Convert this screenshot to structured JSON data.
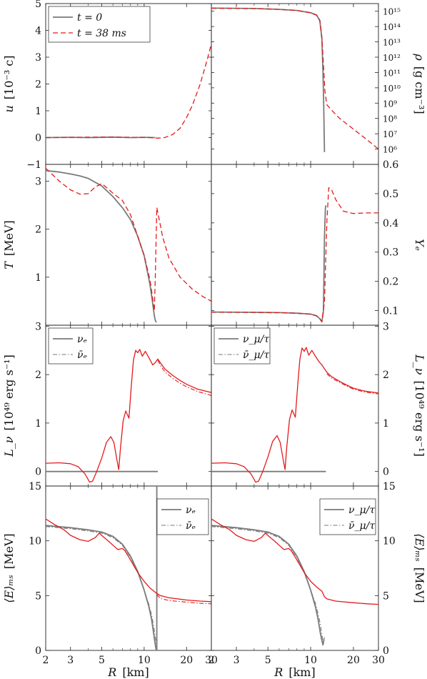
{
  "figure": {
    "xlabel_sym": "R",
    "xlabel_unit": "[km]",
    "x_ticks": [
      "2",
      "3",
      "5",
      "10",
      "20",
      "30"
    ]
  },
  "colors": {
    "initial": "#7a7a7a",
    "evolved": "#e41a1c",
    "frame": "#222222"
  },
  "chart_data": [
    {
      "id": "u",
      "type": "line",
      "side": "left",
      "row": 0,
      "ylabel_sym": "u",
      "ylabel_unit": "[10⁻³ c]",
      "xscale": "log",
      "xlim": [
        2,
        30
      ],
      "ylim": [
        -1,
        5
      ],
      "y_ticks": [
        "−1",
        "0",
        "1",
        "2",
        "3",
        "4",
        "5"
      ],
      "legend": [
        {
          "label": "t = 0",
          "style": "solid-gray"
        },
        {
          "label": "t = 38 ms",
          "style": "dashed-red"
        }
      ],
      "series": [
        {
          "style": "solid-gray",
          "x": [
            2,
            3,
            4,
            6,
            8,
            10,
            12
          ],
          "y": [
            0,
            0.01,
            0,
            0.02,
            0,
            0.01,
            0
          ]
        },
        {
          "style": "dashed-red",
          "x": [
            2,
            3,
            5,
            8,
            11,
            12.5,
            14,
            16,
            18,
            20,
            22,
            25,
            28,
            30
          ],
          "y": [
            0,
            0.01,
            0.02,
            0.01,
            0,
            -0.02,
            0,
            0.12,
            0.35,
            0.75,
            1.2,
            2.0,
            2.9,
            3.5
          ]
        }
      ]
    },
    {
      "id": "rho",
      "type": "line",
      "side": "right",
      "row": 0,
      "ylabel_sym": "ρ",
      "ylabel_unit": "[g cm⁻³]",
      "xscale": "log",
      "yscale": "log",
      "xlim": [
        2,
        30
      ],
      "ylim": [
        5,
        15.5
      ],
      "y_ticks": [
        "10⁶",
        "10⁷",
        "10⁸",
        "10⁹",
        "10¹⁰",
        "10¹¹",
        "10¹²",
        "10¹³",
        "10¹⁴",
        "10¹⁵"
      ],
      "y_tick_values": [
        6,
        7,
        8,
        9,
        10,
        11,
        12,
        13,
        14,
        15
      ],
      "series": [
        {
          "style": "solid-gray",
          "x": [
            2,
            4,
            6,
            8,
            10,
            11,
            11.6,
            12,
            12.2,
            12.35,
            12.45,
            12.5
          ],
          "y": [
            15.2,
            15.18,
            15.12,
            15.05,
            14.9,
            14.75,
            14.4,
            13.2,
            11,
            9,
            7,
            5.8
          ]
        },
        {
          "style": "dashed-red",
          "x": [
            2,
            4,
            6,
            8,
            10,
            11,
            11.6,
            12,
            12.3,
            12.6,
            13,
            14,
            16,
            20,
            25,
            30
          ],
          "y": [
            15.2,
            15.18,
            15.12,
            15.05,
            14.9,
            14.75,
            14.4,
            13.3,
            11.5,
            9.8,
            8.9,
            8.55,
            8.0,
            7.3,
            6.6,
            6.0
          ]
        }
      ]
    },
    {
      "id": "T",
      "type": "line",
      "side": "left",
      "row": 1,
      "ylabel_sym": "T",
      "ylabel_unit": "[MeV]",
      "xscale": "log",
      "xlim": [
        2,
        30
      ],
      "ylim": [
        0,
        3.35
      ],
      "y_ticks": [
        "1",
        "2",
        "3"
      ],
      "y_tick_values": [
        1,
        2,
        3
      ],
      "series": [
        {
          "style": "solid-gray",
          "x": [
            2,
            2.5,
            3,
            3.5,
            4,
            5,
            6,
            7,
            8,
            9,
            10,
            11,
            11.5,
            11.8,
            12,
            12.2
          ],
          "y": [
            3.22,
            3.19,
            3.15,
            3.11,
            3.06,
            2.9,
            2.68,
            2.45,
            2.2,
            1.85,
            1.45,
            0.85,
            0.45,
            0.2,
            0.1,
            0.06
          ]
        },
        {
          "style": "dashed-red",
          "x": [
            2,
            2.5,
            3,
            3.5,
            4,
            4.5,
            5,
            5.5,
            6,
            7,
            8,
            9,
            10,
            11,
            11.5,
            11.8,
            12,
            12.3,
            12.8,
            13.5,
            15,
            18,
            22,
            26,
            30
          ],
          "y": [
            3.27,
            3.0,
            2.82,
            2.73,
            2.74,
            2.88,
            2.95,
            2.85,
            2.75,
            2.6,
            2.3,
            1.85,
            1.45,
            0.95,
            0.55,
            0.3,
            1.0,
            2.45,
            2.2,
            1.85,
            1.4,
            1.0,
            0.75,
            0.6,
            0.5
          ]
        }
      ]
    },
    {
      "id": "Ye",
      "type": "line",
      "side": "right",
      "row": 1,
      "ylabel_sym": "Yₑ",
      "ylabel_unit": "",
      "xscale": "log",
      "xlim": [
        2,
        30
      ],
      "ylim": [
        0.05,
        0.6
      ],
      "y_ticks": [
        "0.1",
        "0.2",
        "0.3",
        "0.4",
        "0.5",
        "0.6"
      ],
      "y_tick_values": [
        0.1,
        0.2,
        0.3,
        0.4,
        0.5,
        0.6
      ],
      "series": [
        {
          "style": "solid-gray",
          "x": [
            2,
            4,
            6,
            8,
            10,
            11,
            11.6,
            12,
            12.3,
            12.5,
            12.7,
            12.8
          ],
          "y": [
            0.095,
            0.094,
            0.093,
            0.091,
            0.088,
            0.082,
            0.072,
            0.062,
            0.1,
            0.35,
            0.45,
            0.46
          ]
        },
        {
          "style": "dashed-red",
          "x": [
            2,
            4,
            6,
            8,
            10,
            11,
            11.6,
            12,
            12.5,
            13,
            13.4,
            14,
            15,
            17,
            20,
            25,
            30
          ],
          "y": [
            0.095,
            0.094,
            0.093,
            0.091,
            0.088,
            0.082,
            0.072,
            0.062,
            0.13,
            0.4,
            0.52,
            0.515,
            0.48,
            0.44,
            0.432,
            0.434,
            0.434
          ]
        }
      ]
    },
    {
      "id": "Lnue",
      "type": "line",
      "side": "left",
      "row": 2,
      "ylabel_sym": "L_ν",
      "ylabel_unit": "[10⁴⁹ erg s⁻¹]",
      "xscale": "log",
      "xlim": [
        2,
        30
      ],
      "ylim": [
        -0.3,
        3.02
      ],
      "y_ticks": [
        "0",
        "1",
        "2",
        "3"
      ],
      "y_tick_values": [
        0,
        1,
        2,
        3
      ],
      "legend": [
        {
          "label": "νₑ",
          "style": "solid-gray"
        },
        {
          "label": "ν̄ₑ",
          "style": "dashdot-gray"
        }
      ],
      "series": [
        {
          "style": "solid-gray",
          "x": [
            2,
            12.5
          ],
          "y": [
            0,
            0
          ]
        },
        {
          "style": "solid-red",
          "x": [
            2,
            2.5,
            3,
            3.4,
            3.8,
            4.1,
            4.3,
            4.6,
            5,
            5.4,
            5.8,
            6.1,
            6.4,
            6.6,
            6.8,
            7.1,
            7.4,
            7.8,
            8.1,
            8.4,
            8.7,
            9,
            9.3,
            9.7,
            10.2,
            10.8,
            11.5,
            12,
            12.5,
            13,
            14,
            16,
            18,
            20,
            24,
            30
          ],
          "y": [
            0.17,
            0.18,
            0.16,
            0.1,
            -0.05,
            -0.22,
            -0.2,
            0.0,
            0.28,
            0.6,
            0.72,
            0.6,
            0.25,
            0.04,
            0.5,
            1.05,
            1.25,
            1.1,
            1.75,
            2.3,
            2.5,
            2.45,
            2.52,
            2.38,
            2.48,
            2.35,
            2.2,
            2.25,
            2.32,
            2.25,
            2.12,
            1.98,
            1.88,
            1.8,
            1.7,
            1.63
          ]
        },
        {
          "style": "dashdot-red",
          "x": [
            12.5,
            13,
            14,
            16,
            18,
            20,
            24,
            30
          ],
          "y": [
            2.3,
            2.2,
            2.06,
            1.92,
            1.82,
            1.75,
            1.65,
            1.57
          ]
        }
      ]
    },
    {
      "id": "Lnux",
      "type": "line",
      "side": "right",
      "row": 2,
      "ylabel_sym": "L_ν",
      "ylabel_unit": "[10⁴⁹ erg s⁻¹]",
      "xscale": "log",
      "xlim": [
        2,
        30
      ],
      "ylim": [
        -0.3,
        3.02
      ],
      "y_ticks": [
        "0",
        "1",
        "2",
        "3"
      ],
      "y_tick_values": [
        0,
        1,
        2,
        3
      ],
      "legend": [
        {
          "label": "ν_μ/τ",
          "style": "solid-gray"
        },
        {
          "label": "ν̄_μ/τ",
          "style": "dashdot-gray"
        }
      ],
      "series": [
        {
          "style": "solid-gray",
          "x": [
            2,
            12.8
          ],
          "y": [
            0,
            0
          ]
        },
        {
          "style": "solid-red",
          "x": [
            2,
            2.5,
            3,
            3.4,
            3.8,
            4.1,
            4.3,
            4.6,
            5,
            5.4,
            5.8,
            6.1,
            6.4,
            6.6,
            6.8,
            7.1,
            7.4,
            7.8,
            8.1,
            8.4,
            8.7,
            9,
            9.3,
            9.7,
            10.2,
            10.8,
            11.5,
            12,
            12.5,
            13,
            14,
            16,
            18,
            20,
            24,
            30
          ],
          "y": [
            0.17,
            0.18,
            0.16,
            0.1,
            -0.05,
            -0.22,
            -0.2,
            0.0,
            0.3,
            0.62,
            0.74,
            0.6,
            0.25,
            0.04,
            0.52,
            1.08,
            1.27,
            1.12,
            1.78,
            2.32,
            2.55,
            2.48,
            2.56,
            2.4,
            2.5,
            2.38,
            2.26,
            2.2,
            2.12,
            2.05,
            1.96,
            1.86,
            1.78,
            1.72,
            1.66,
            1.62
          ]
        },
        {
          "style": "dashdot-red",
          "x": [
            13,
            14,
            16,
            18,
            20,
            24,
            30
          ],
          "y": [
            2.02,
            1.93,
            1.84,
            1.76,
            1.7,
            1.64,
            1.6
          ]
        }
      ]
    },
    {
      "id": "Enue",
      "type": "line",
      "side": "left",
      "row": 3,
      "ylabel_sym": "⟨E⟩ₘₛ",
      "ylabel_unit": "[MeV]",
      "xscale": "log",
      "xlim": [
        2,
        30
      ],
      "ylim": [
        0,
        15
      ],
      "y_ticks": [
        "0",
        "5",
        "10",
        "15"
      ],
      "y_tick_values": [
        0,
        5,
        10,
        15
      ],
      "legend": [
        {
          "label": "νₑ",
          "style": "solid-gray"
        },
        {
          "label": "ν̄ₑ",
          "style": "dashdot-gray"
        }
      ],
      "series": [
        {
          "style": "solid-gray",
          "x": [
            2,
            3,
            4,
            5,
            6,
            7,
            8,
            9,
            10,
            10.8,
            11.3,
            11.7,
            12,
            12.2
          ],
          "y": [
            11.4,
            11.2,
            11,
            10.8,
            10.4,
            9.7,
            8.6,
            7.2,
            5.5,
            4,
            2.8,
            1.5,
            0.5,
            0
          ]
        },
        {
          "style": "dashdot-gray",
          "x": [
            2,
            3,
            4,
            5,
            6,
            7,
            8,
            9,
            10,
            10.8,
            11.3,
            11.7,
            12,
            12.3
          ],
          "y": [
            11.3,
            11.1,
            10.9,
            10.7,
            10.3,
            9.6,
            8.5,
            7.1,
            5.5,
            4.2,
            3.2,
            2.2,
            1.2,
            0.3
          ]
        },
        {
          "style": "solid-gray",
          "x": [
            12.3,
            12.3
          ],
          "y": [
            0,
            15
          ]
        },
        {
          "style": "solid-red",
          "x": [
            2,
            2.3,
            2.7,
            3,
            3.5,
            4,
            4.5,
            4.8,
            5.2,
            5.6,
            6,
            6.5,
            7,
            7.3,
            7.8,
            8.3,
            9,
            10,
            11,
            12,
            13,
            15,
            20,
            25,
            30
          ],
          "y": [
            12,
            11.5,
            11,
            10.5,
            10.1,
            9.95,
            10.3,
            10.7,
            10.3,
            9.95,
            9.6,
            9.2,
            9.3,
            9.1,
            8.5,
            7.9,
            7.1,
            6.3,
            5.7,
            5.3,
            5.0,
            4.8,
            4.6,
            4.5,
            4.45
          ]
        },
        {
          "style": "dashdot-red",
          "x": [
            12.3,
            13,
            15,
            20,
            25,
            30
          ],
          "y": [
            5.1,
            4.75,
            4.55,
            4.4,
            4.3,
            4.25
          ]
        }
      ]
    },
    {
      "id": "Enux",
      "type": "line",
      "side": "right",
      "row": 3,
      "ylabel_sym": "⟨E⟩ₘₛ",
      "ylabel_unit": "[MeV]",
      "xscale": "log",
      "xlim": [
        2,
        30
      ],
      "ylim": [
        0,
        15
      ],
      "y_ticks": [
        "0",
        "5",
        "10",
        "15"
      ],
      "y_tick_values": [
        0,
        5,
        10,
        15
      ],
      "legend": [
        {
          "label": "ν_μ/τ",
          "style": "solid-gray"
        },
        {
          "label": "ν̄_μ/τ",
          "style": "dashdot-gray"
        }
      ],
      "series": [
        {
          "style": "solid-gray",
          "x": [
            2,
            3,
            4,
            5,
            6,
            7,
            8,
            9,
            10,
            10.8,
            11.3,
            11.7,
            12,
            12.2,
            12.4
          ],
          "y": [
            11.4,
            11.2,
            11,
            10.8,
            10.4,
            9.7,
            8.6,
            7.2,
            5.5,
            4,
            2.8,
            1.6,
            0.9,
            0.5,
            1.0
          ]
        },
        {
          "style": "dashdot-gray",
          "x": [
            2,
            3,
            4,
            5,
            6,
            7,
            8,
            9,
            10,
            10.8,
            11.3,
            11.7,
            12,
            12.3,
            12.5
          ],
          "y": [
            11.3,
            11.1,
            10.9,
            10.7,
            10.3,
            9.6,
            8.5,
            7.1,
            5.5,
            4.3,
            3.3,
            2.4,
            1.4,
            0.7,
            1.2
          ]
        },
        {
          "style": "solid-red",
          "x": [
            2,
            2.3,
            2.7,
            3,
            3.5,
            4,
            4.5,
            4.8,
            5.2,
            5.6,
            6,
            6.5,
            7,
            7.3,
            7.8,
            8.3,
            9,
            10,
            11,
            12,
            12.5,
            13,
            15,
            20,
            25,
            30
          ],
          "y": [
            12,
            11.5,
            11,
            10.5,
            10.1,
            9.95,
            10.3,
            10.7,
            10.3,
            9.95,
            9.6,
            9.2,
            9.3,
            9.1,
            8.5,
            7.9,
            7.1,
            6.3,
            5.8,
            5.4,
            4.9,
            4.7,
            4.5,
            4.35,
            4.25,
            4.2
          ]
        }
      ]
    }
  ]
}
